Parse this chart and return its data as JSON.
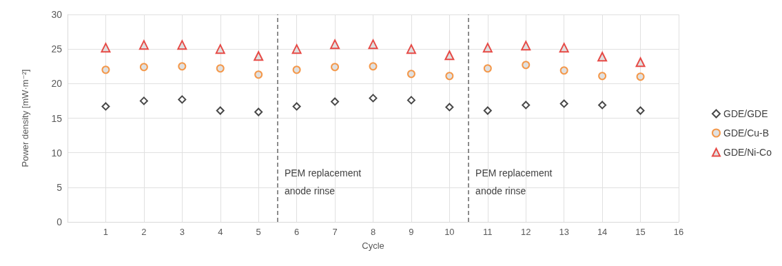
{
  "chart_data": {
    "type": "scatter",
    "xlabel": "Cycle",
    "ylabel": "Power density [mW·m⁻²]",
    "x": [
      1,
      2,
      3,
      4,
      5,
      6,
      7,
      8,
      9,
      10,
      11,
      12,
      13,
      14,
      15
    ],
    "xlim": [
      0,
      16
    ],
    "xticks": [
      1,
      2,
      3,
      4,
      5,
      6,
      7,
      8,
      9,
      10,
      11,
      12,
      13,
      14,
      15,
      16
    ],
    "ylim": [
      0,
      30
    ],
    "yticks": [
      0,
      5,
      10,
      15,
      20,
      25,
      30
    ],
    "grid": true,
    "legend": "right",
    "series": [
      {
        "name": "GDE/GDE",
        "color": "#1a1a1a",
        "marker": "diamond",
        "values": [
          16.7,
          17.5,
          17.7,
          16.1,
          15.9,
          16.7,
          17.4,
          17.9,
          17.6,
          16.6,
          16.1,
          16.9,
          17.1,
          16.9,
          16.1
        ]
      },
      {
        "name": "GDE/Cu-B",
        "color": "#f58220",
        "marker": "circle",
        "values": [
          22.0,
          22.4,
          22.5,
          22.2,
          21.3,
          22.0,
          22.4,
          22.5,
          21.4,
          21.1,
          22.2,
          22.7,
          21.9,
          21.1,
          21.0
        ]
      },
      {
        "name": "GDE/Ni-Co",
        "color": "#e3211c",
        "marker": "triangle",
        "values": [
          25.2,
          25.6,
          25.6,
          25.0,
          24.0,
          25.0,
          25.7,
          25.7,
          25.0,
          24.1,
          25.2,
          25.5,
          25.2,
          23.9,
          23.1
        ]
      }
    ],
    "ref_lines": [
      {
        "axis": "x",
        "value": 5.5,
        "label": "PEM replacement\nanode rinse",
        "color": "#666666",
        "line_style": "dashed"
      },
      {
        "axis": "x",
        "value": 10.5,
        "label": "PEM replacement\nanode rinse",
        "color": "#666666",
        "line_style": "dashed"
      }
    ]
  }
}
